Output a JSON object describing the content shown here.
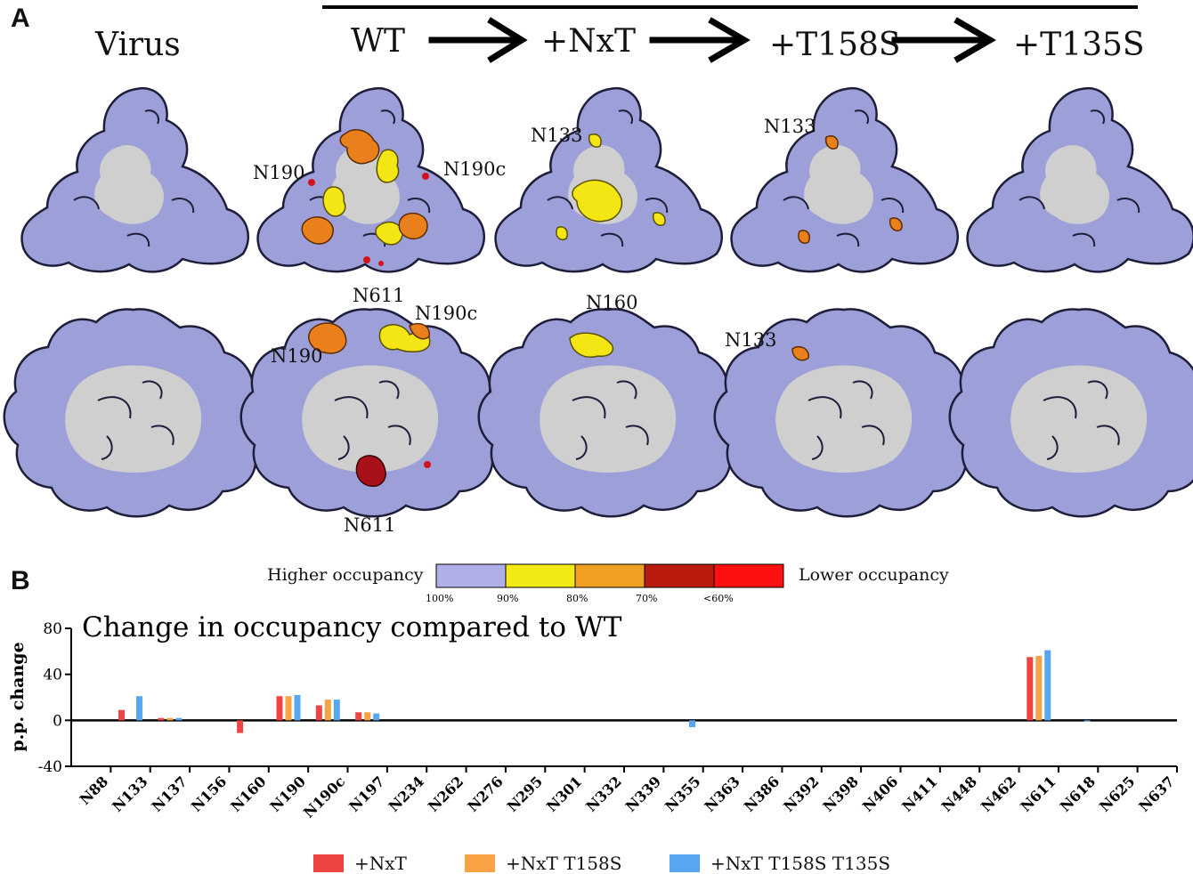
{
  "panel_a": {
    "letter": "A",
    "stages": [
      "Virus",
      "WT",
      "+NxT",
      "+T158S",
      "+T135S"
    ],
    "row1_sites": {
      "wt": [
        "N190",
        "N190c",
        "N611"
      ],
      "nxt": [
        "N133"
      ],
      "t158s": [
        "N133"
      ]
    },
    "row2_sites": {
      "wt": [
        "N190c",
        "N190",
        "N611"
      ],
      "nxt": [
        "N160"
      ],
      "t158s": [
        "N133"
      ]
    }
  },
  "panel_b": {
    "letter": "B"
  },
  "occupancy_scale": {
    "left_label": "Higher occupancy",
    "right_label": "Lower occupancy",
    "bins": [
      {
        "color": "#b0b0e6",
        "label": "100%"
      },
      {
        "color": "#f2ea12",
        "label": "90%"
      },
      {
        "color": "#f0a020",
        "label": "80%"
      },
      {
        "color": "#b91c0e",
        "label": "70%"
      },
      {
        "color": "#ff1010",
        "label": "<60%"
      }
    ]
  },
  "colors": {
    "protein": "#9c9fd8",
    "protein_edge": "#1e1e3a",
    "core": "#cfcfcf",
    "yellow": "#f4e614",
    "orange": "#e9801c",
    "red": "#d0131a",
    "dark_red": "#a8101a"
  },
  "chart_data": {
    "type": "bar",
    "title": "Change in occupancy compared to WT",
    "ylabel": "p.p. change",
    "xlabel": "",
    "ylim": [
      -40,
      80
    ],
    "yticks": [
      -40,
      0,
      40,
      80
    ],
    "categories": [
      "N88",
      "N133",
      "N137",
      "N156",
      "N160",
      "N190",
      "N190c",
      "N197",
      "N234",
      "N262",
      "N276",
      "N295",
      "N301",
      "N332",
      "N339",
      "N355",
      "N363",
      "N386",
      "N392",
      "N398",
      "N406",
      "N411",
      "N448",
      "N462",
      "N611",
      "N618",
      "N625",
      "N637"
    ],
    "series": [
      {
        "name": "+NxT",
        "color": "#f04444",
        "values": [
          0,
          9,
          2,
          0,
          -11,
          21,
          13,
          7,
          0,
          0,
          0,
          0,
          0,
          0,
          0,
          0,
          0,
          0,
          0,
          0,
          0,
          0,
          0,
          0,
          55,
          0,
          0,
          0
        ]
      },
      {
        "name": "+NxT T158S",
        "color": "#f7a244",
        "values": [
          0,
          0,
          2,
          0,
          0,
          21,
          18,
          7,
          0,
          0,
          0,
          0,
          0,
          0,
          0,
          0,
          0,
          0,
          0,
          0,
          0,
          0,
          0,
          0,
          56,
          0,
          0,
          0
        ]
      },
      {
        "name": "+NxT T158S T135S",
        "color": "#58a6f0",
        "values": [
          0,
          21,
          2,
          0,
          0,
          22,
          18,
          6,
          0,
          0,
          0,
          0,
          0,
          0,
          0,
          -6,
          0,
          0,
          0,
          0,
          0,
          0,
          0,
          0,
          61,
          -1,
          0,
          0
        ]
      }
    ],
    "legend_position": "bottom"
  }
}
